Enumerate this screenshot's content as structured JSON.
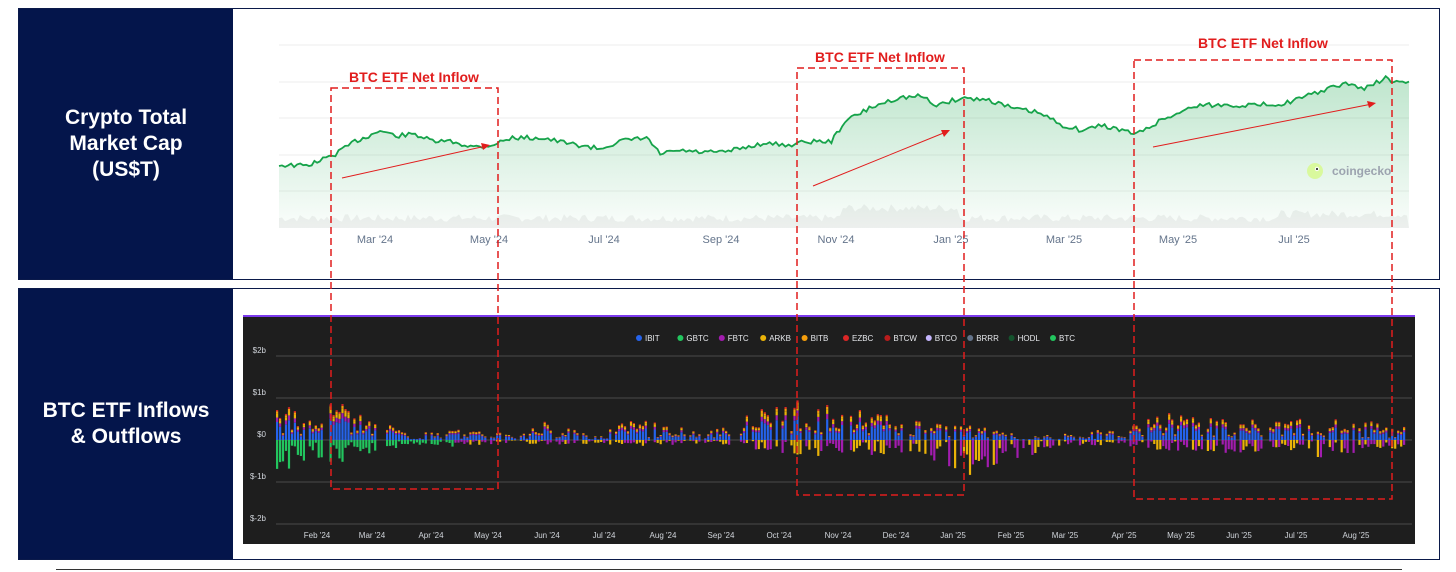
{
  "top_panel": {
    "label_lines": [
      "Crypto Total",
      "Market Cap",
      "(US$T)"
    ]
  },
  "bottom_panel": {
    "label_lines": [
      "BTC ETF Inflows",
      "& Outflows"
    ]
  },
  "annotations": [
    {
      "text": "BTC ETF Net Inflow"
    },
    {
      "text": "BTC ETF Net Inflow"
    },
    {
      "text": "BTC ETF Net Inflow"
    }
  ],
  "watermark": "coingecko",
  "colors": {
    "side_bg": "#04154b",
    "line": "#16a34a",
    "annotation": "#e11d1d",
    "etf_bg": "#1e1e1e"
  },
  "chart_data": [
    {
      "type": "area",
      "title": "",
      "x_ticks": [
        "Mar '24",
        "May '24",
        "Jul '24",
        "Sep '24",
        "Nov '24",
        "Jan '25",
        "Mar '25",
        "May '25",
        "Jul '25"
      ],
      "x_range": [
        "2024-01-22",
        "2025-08-25"
      ],
      "series": [
        {
          "x": [
            "2024-01-22",
            "2024-02-05",
            "2024-02-12",
            "2024-02-20",
            "2024-03-01",
            "2024-03-08",
            "2024-03-14",
            "2024-03-22",
            "2024-04-01",
            "2024-04-10",
            "2024-04-19",
            "2024-05-01",
            "2024-05-10",
            "2024-05-21",
            "2024-06-05",
            "2024-06-18",
            "2024-07-05",
            "2024-07-15",
            "2024-07-29",
            "2024-08-05",
            "2024-08-15",
            "2024-08-25",
            "2024-09-06",
            "2024-09-15",
            "2024-09-27",
            "2024-10-10",
            "2024-10-20",
            "2024-11-01",
            "2024-11-08",
            "2024-11-13",
            "2024-11-22",
            "2024-12-05",
            "2024-12-17",
            "2024-12-25",
            "2025-01-07",
            "2025-01-21",
            "2025-02-03",
            "2025-02-15",
            "2025-02-28",
            "2025-03-10",
            "2025-03-20",
            "2025-04-07",
            "2025-04-20",
            "2025-05-08",
            "2025-05-22",
            "2025-06-05",
            "2025-06-22",
            "2025-07-01",
            "2025-07-14",
            "2025-07-25",
            "2025-08-02",
            "2025-08-13",
            "2025-08-20",
            "2025-08-25"
          ],
          "values": [
            1.7,
            1.68,
            1.82,
            2.0,
            2.35,
            2.5,
            2.65,
            2.5,
            2.55,
            2.35,
            2.35,
            2.2,
            2.25,
            2.45,
            2.45,
            2.3,
            2.15,
            2.35,
            2.45,
            2.0,
            2.1,
            2.05,
            2.05,
            2.15,
            2.3,
            2.25,
            2.35,
            2.35,
            2.9,
            3.05,
            3.3,
            3.55,
            3.6,
            3.35,
            3.55,
            3.5,
            3.25,
            3.15,
            2.8,
            2.65,
            2.8,
            2.55,
            2.95,
            3.35,
            3.35,
            3.35,
            3.4,
            3.55,
            3.8,
            3.95,
            3.8,
            4.1,
            3.95,
            4.0
          ]
        }
      ]
    },
    {
      "type": "bar",
      "title": "",
      "stacked": true,
      "legend": [
        "IBIT",
        "GBTC",
        "FBTC",
        "ARKB",
        "BITB",
        "EZBC",
        "BTCW",
        "BTCO",
        "BRRR",
        "HODL",
        "BTC"
      ],
      "legend_colors": [
        "#2563eb",
        "#22c55e",
        "#a21caf",
        "#eab308",
        "#f59e0b",
        "#dc2626",
        "#b91c1c",
        "#c4b5fd",
        "#64748b",
        "#14532d",
        "#22c55e"
      ],
      "legend_placement": "top",
      "y_ticks": [
        "$2b",
        "$1b",
        "$0",
        "$-1b",
        "$-2b"
      ],
      "ylim": [
        -2,
        2
      ],
      "x_ticks": [
        "Feb '24",
        "Mar '24",
        "Apr '24",
        "May '24",
        "Jun '24",
        "Jul '24",
        "Aug '24",
        "Sep '24",
        "Oct '24",
        "Nov '24",
        "Dec '24",
        "Jan '25",
        "Feb '25",
        "Mar '25",
        "Apr '25",
        "May '25",
        "Jun '25",
        "Jul '25",
        "Aug '25"
      ],
      "series_profile": {
        "inflow_b": [
          0.65,
          0.6,
          0.8,
          0.85,
          0.35,
          0.1,
          0.2,
          0.2,
          0.15,
          0.1,
          0.35,
          0.2,
          0.05,
          0.45,
          0.4,
          0.25,
          0.15,
          0.3,
          0.6,
          0.7,
          0.8,
          0.55,
          0.6,
          0.45,
          0.4,
          0.25,
          0.3,
          0.15,
          0.1,
          0.1,
          0.15,
          0.25,
          0.45,
          0.55,
          0.5,
          0.45,
          0.45,
          0.4,
          0.55,
          0.5,
          0.4,
          0.35,
          0.3
        ],
        "outflow_b": [
          -0.55,
          -0.5,
          -0.45,
          -0.35,
          -0.2,
          -0.1,
          -0.1,
          -0.15,
          -0.08,
          -0.05,
          -0.1,
          -0.1,
          -0.05,
          -0.15,
          -0.1,
          -0.1,
          -0.05,
          -0.1,
          -0.2,
          -0.25,
          -0.3,
          -0.35,
          -0.3,
          -0.25,
          -0.35,
          -0.5,
          -0.7,
          -0.4,
          -0.3,
          -0.15,
          -0.1,
          -0.1,
          -0.15,
          -0.2,
          -0.2,
          -0.25,
          -0.3,
          -0.15,
          -0.2,
          -0.35,
          -0.25,
          -0.2,
          -0.15
        ]
      }
    }
  ]
}
